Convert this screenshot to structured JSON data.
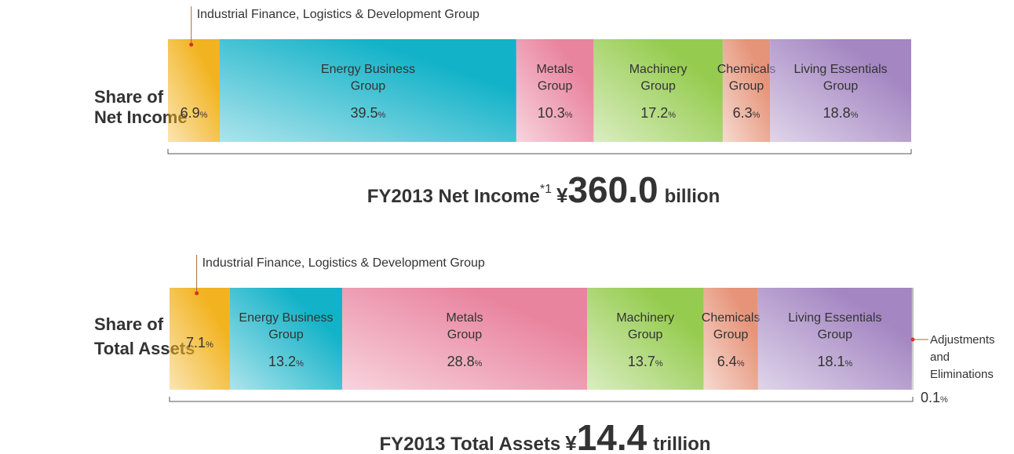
{
  "chart_data": [
    {
      "type": "stacked_bar",
      "row_label": [
        "Share of",
        "Net Income"
      ],
      "unit": "%",
      "title": {
        "text": "FY2013 Net Income",
        "note": "*1",
        "currency": "¥",
        "amount": "360.0",
        "scale": "billion"
      },
      "series": [
        {
          "name": [
            "Industrial Finance, Logistics & Development Group"
          ],
          "name_position": "above",
          "color": "#f2b320",
          "values": [
            6.9
          ]
        },
        {
          "name": [
            "Energy Business",
            "Group"
          ],
          "name_position": "inside",
          "color": "#12b2c8",
          "values": [
            39.5
          ]
        },
        {
          "name": [
            "Metals",
            "Group"
          ],
          "name_position": "inside",
          "color": "#e9849f",
          "values": [
            10.3
          ]
        },
        {
          "name": [
            "Machinery",
            "Group"
          ],
          "name_position": "inside",
          "color": "#95cc4f",
          "values": [
            17.2
          ]
        },
        {
          "name": [
            "Chemicals",
            "Group"
          ],
          "name_position": "inside",
          "color": "#e69479",
          "values": [
            6.3
          ]
        },
        {
          "name": [
            "Living Essentials",
            "Group"
          ],
          "name_position": "inside",
          "color": "#a486c2",
          "values": [
            18.8
          ]
        }
      ]
    },
    {
      "type": "stacked_bar",
      "row_label": [
        "Share of",
        "Total Assets"
      ],
      "unit": "%",
      "title": {
        "text": "FY2013 Total Assets",
        "currency": "¥",
        "amount": "14.4",
        "scale": "trillion"
      },
      "series": [
        {
          "name": [
            "Industrial Finance, Logistics & Development Group"
          ],
          "name_position": "above",
          "color": "#f2b320",
          "values": [
            7.1
          ]
        },
        {
          "name": [
            "Energy Business",
            "Group"
          ],
          "name_position": "inside",
          "color": "#12b2c8",
          "values": [
            13.2
          ]
        },
        {
          "name": [
            "Metals",
            "Group"
          ],
          "name_position": "inside",
          "color": "#e9849f",
          "values": [
            28.8
          ]
        },
        {
          "name": [
            "Machinery",
            "Group"
          ],
          "name_position": "inside",
          "color": "#95cc4f",
          "values": [
            13.7
          ]
        },
        {
          "name": [
            "Chemicals",
            "Group"
          ],
          "name_position": "inside",
          "color": "#e69479",
          "values": [
            6.4
          ]
        },
        {
          "name": [
            "Living Essentials",
            "Group"
          ],
          "name_position": "inside",
          "color": "#a486c2",
          "values": [
            18.1
          ]
        },
        {
          "name": [
            "Adjustments",
            "and",
            "Eliminations"
          ],
          "name_position": "outside",
          "color": "#b5b5b5",
          "values": [
            0.1
          ]
        }
      ]
    }
  ]
}
